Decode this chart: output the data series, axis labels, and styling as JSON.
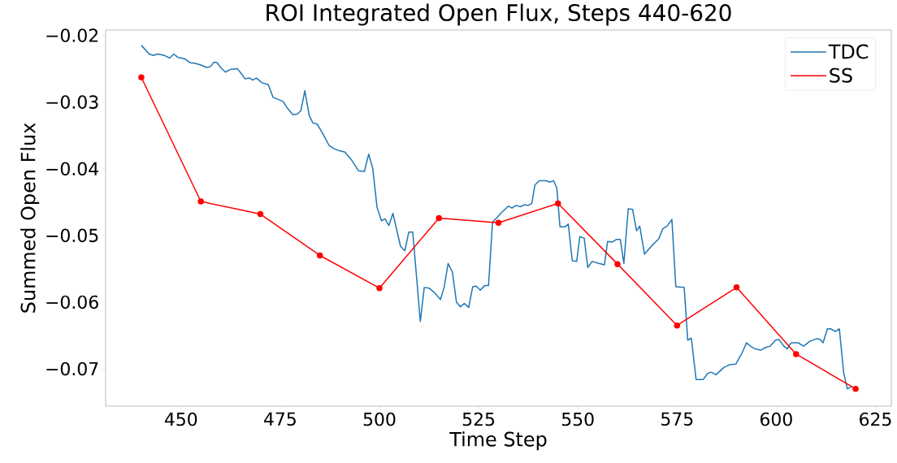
{
  "chart_data": {
    "type": "line",
    "title": "ROI Integrated Open Flux, Steps 440-620",
    "xlabel": "Time Step",
    "ylabel": "Summed Open Flux",
    "xlim": [
      431,
      629
    ],
    "ylim": [
      -0.0756,
      -0.0192
    ],
    "xticks": [
      450,
      475,
      500,
      525,
      550,
      575,
      600,
      625
    ],
    "yticks": [
      {
        "value": -0.07,
        "label": "−0.07"
      },
      {
        "value": -0.06,
        "label": "−0.06"
      },
      {
        "value": -0.05,
        "label": "−0.05"
      },
      {
        "value": -0.04,
        "label": "−0.04"
      },
      {
        "value": -0.03,
        "label": "−0.03"
      },
      {
        "value": -0.02,
        "label": "−0.02"
      }
    ],
    "grid": false,
    "legend": "top right",
    "series": [
      {
        "name": "TDC",
        "color": "#1f77b4",
        "marker": "none",
        "x": [
          440,
          442,
          443,
          444.1,
          445.8,
          447.1,
          448.2,
          449.2,
          450.9,
          452.3,
          453.6,
          455.3,
          456.4,
          457.4,
          458.3,
          459.1,
          460.1,
          461.2,
          462.5,
          464.2,
          464.9,
          466.1,
          467.3,
          468,
          469,
          470.4,
          472,
          473.2,
          474.5,
          475.7,
          476.9,
          478.2,
          479.3,
          480.2,
          481.2,
          482.3,
          483.2,
          484.3,
          485.8,
          487.3,
          488.6,
          489.9,
          491.3,
          493,
          494.7,
          496.2,
          497.3,
          498.3,
          499.4,
          500.5,
          501.4,
          502.4,
          503.4,
          505.3,
          506.4,
          507.4,
          508.4,
          510.3,
          511.3,
          512.5,
          513.9,
          515.4,
          516.3,
          517.3,
          518.4,
          519.4,
          520.4,
          521.4,
          522.5,
          523.5,
          524.4,
          525.4,
          526.6,
          527.5,
          528.5,
          529.5,
          530.7,
          532.5,
          533.4,
          534.4,
          535.5,
          536.5,
          537.5,
          538.4,
          539.2,
          540.3,
          542,
          543,
          543.9,
          544.7,
          545.5,
          546.8,
          547.6,
          548.6,
          549.7,
          550.5,
          551.6,
          552.5,
          553.6,
          555.3,
          556.7,
          557.5,
          558.6,
          559.7,
          560.7,
          561.6,
          562.7,
          563.8,
          564.8,
          565.6,
          566.8,
          568.7,
          570.4,
          571.4,
          572.5,
          573.7,
          574.7,
          576.8,
          577.7,
          578.6,
          579.8,
          581.6,
          582.7,
          583.6,
          584.8,
          586.8,
          588.2,
          589.8,
          591.4,
          592.5,
          593.7,
          594.7,
          596.1,
          597.3,
          598.5,
          599.8,
          600.7,
          601.9,
          602.8,
          603.7,
          605.5,
          606.9,
          608.4,
          610.1,
          611.1,
          611.8,
          612.9,
          613.7,
          614.9,
          615.9,
          617,
          617.9,
          619
        ],
        "values": [
          -0.0215,
          -0.0228,
          -0.023,
          -0.0228,
          -0.023,
          -0.0234,
          -0.0228,
          -0.0233,
          -0.0235,
          -0.0241,
          -0.0242,
          -0.0245,
          -0.0248,
          -0.0247,
          -0.024,
          -0.0241,
          -0.0249,
          -0.0255,
          -0.0251,
          -0.025,
          -0.0255,
          -0.0265,
          -0.0264,
          -0.0267,
          -0.0264,
          -0.0271,
          -0.0274,
          -0.0293,
          -0.0296,
          -0.0299,
          -0.031,
          -0.0319,
          -0.0318,
          -0.0313,
          -0.0283,
          -0.032,
          -0.0331,
          -0.0333,
          -0.0348,
          -0.0365,
          -0.037,
          -0.0373,
          -0.0375,
          -0.0387,
          -0.0403,
          -0.0404,
          -0.0378,
          -0.0399,
          -0.0458,
          -0.0478,
          -0.0475,
          -0.0485,
          -0.0467,
          -0.0516,
          -0.0523,
          -0.0495,
          -0.0495,
          -0.0629,
          -0.0578,
          -0.0579,
          -0.0586,
          -0.0596,
          -0.0578,
          -0.0542,
          -0.0555,
          -0.06,
          -0.0607,
          -0.0602,
          -0.0608,
          -0.0577,
          -0.0576,
          -0.0582,
          -0.0575,
          -0.0575,
          -0.048,
          -0.0474,
          -0.0466,
          -0.0456,
          -0.0459,
          -0.0455,
          -0.0457,
          -0.0454,
          -0.0455,
          -0.0452,
          -0.0424,
          -0.0418,
          -0.0418,
          -0.042,
          -0.0418,
          -0.0429,
          -0.0487,
          -0.0487,
          -0.0483,
          -0.0538,
          -0.0539,
          -0.0502,
          -0.0504,
          -0.0548,
          -0.0539,
          -0.0542,
          -0.0544,
          -0.0509,
          -0.051,
          -0.0506,
          -0.0506,
          -0.0542,
          -0.046,
          -0.0461,
          -0.0493,
          -0.0486,
          -0.0528,
          -0.0515,
          -0.0505,
          -0.049,
          -0.0486,
          -0.0476,
          -0.0577,
          -0.0578,
          -0.0657,
          -0.0654,
          -0.0716,
          -0.0716,
          -0.0707,
          -0.0705,
          -0.0709,
          -0.0698,
          -0.0694,
          -0.0693,
          -0.0676,
          -0.0661,
          -0.0667,
          -0.067,
          -0.0672,
          -0.0668,
          -0.0666,
          -0.0657,
          -0.0656,
          -0.0666,
          -0.067,
          -0.0661,
          -0.0661,
          -0.0666,
          -0.0659,
          -0.0655,
          -0.0656,
          -0.0661,
          -0.064,
          -0.064,
          -0.0644,
          -0.064,
          -0.0706,
          -0.073,
          -0.0727
        ]
      },
      {
        "name": "SS",
        "color": "#ff0000",
        "marker": "circle",
        "x": [
          440,
          455,
          470,
          485,
          500,
          515,
          530,
          545,
          560,
          575,
          590,
          605,
          620
        ],
        "values": [
          -0.0263,
          -0.0449,
          -0.0468,
          -0.053,
          -0.0579,
          -0.0474,
          -0.0481,
          -0.0452,
          -0.0543,
          -0.0635,
          -0.0578,
          -0.0678,
          -0.073
        ]
      }
    ]
  }
}
